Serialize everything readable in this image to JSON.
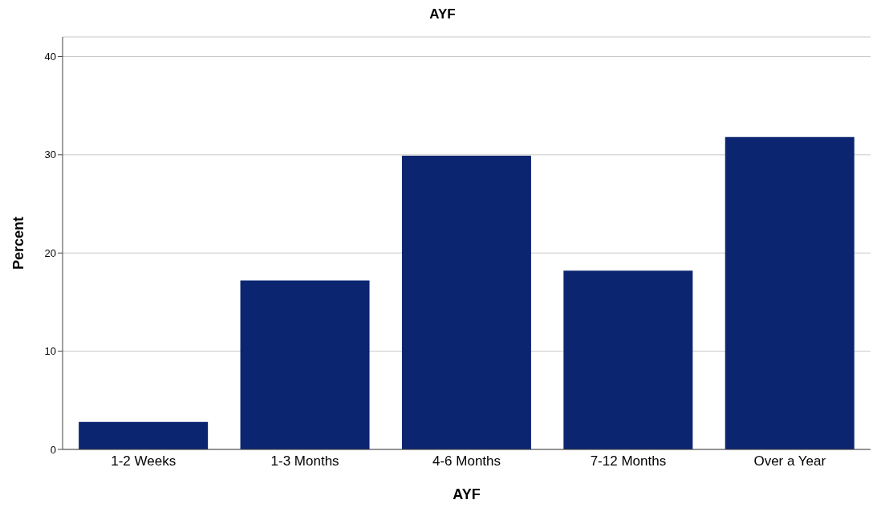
{
  "chart_data": {
    "type": "bar",
    "title": "AYF",
    "xlabel": "AYF",
    "ylabel": "Percent",
    "categories": [
      "1-2 Weeks",
      "1-3 Months",
      "4-6 Months",
      "7-12 Months",
      "Over a Year"
    ],
    "values": [
      2.8,
      17.2,
      29.9,
      18.2,
      31.8
    ],
    "color": "#0b2570",
    "ylim": [
      0,
      42
    ],
    "yticks": [
      0,
      10,
      20,
      30,
      40
    ],
    "grid": "y"
  }
}
